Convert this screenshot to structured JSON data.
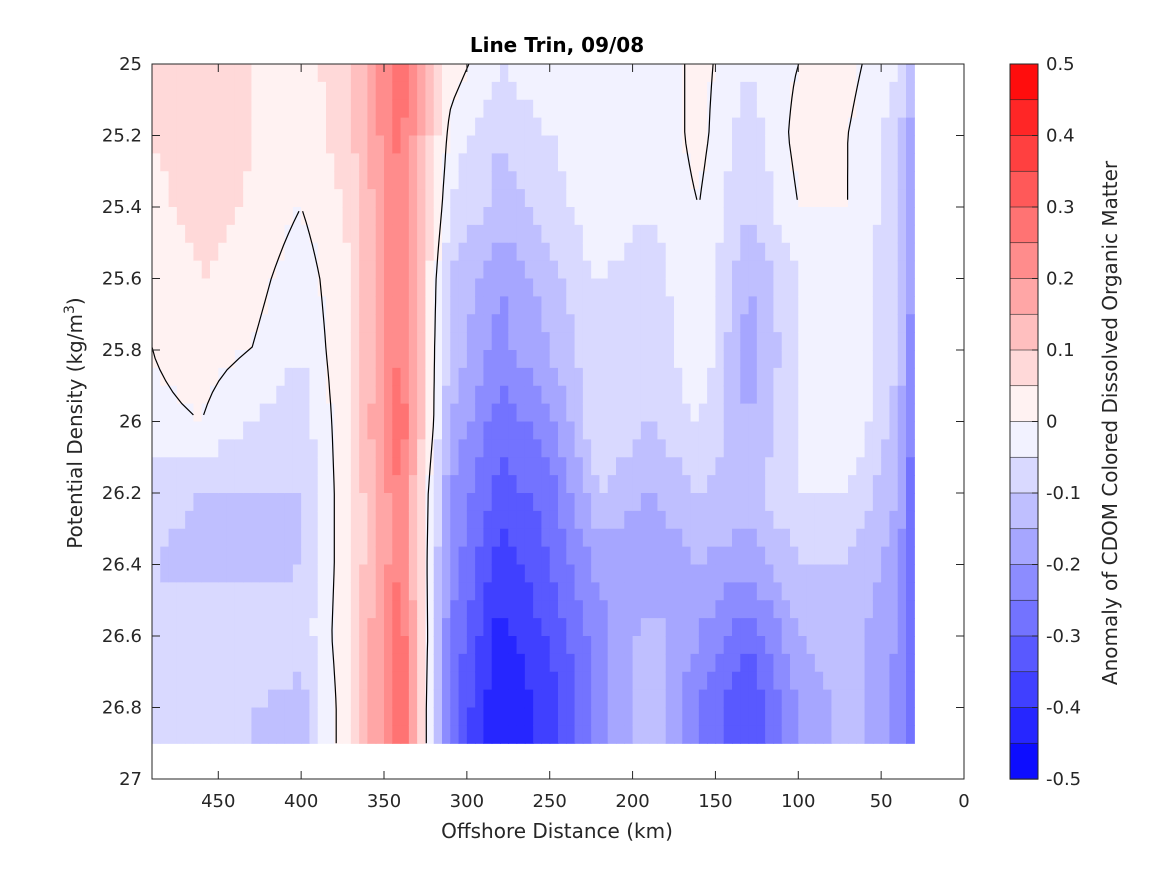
{
  "chart_data": {
    "type": "heatmap",
    "title": "Line Trin, 09/08",
    "xlabel": "Offshore Distance (km)",
    "ylabel_main": "Potential Density (kg/m",
    "ylabel_sup": "3",
    "ylabel_close": ")",
    "colorbar_label": "Anomaly of CDOM Colored Dissolved Organic Matter",
    "x_ticks": [
      450,
      400,
      350,
      300,
      250,
      200,
      150,
      100,
      50,
      0
    ],
    "x_tick_labels": [
      "450",
      "400",
      "350",
      "300",
      "250",
      "200",
      "150",
      "100",
      "50",
      "0"
    ],
    "xlim": [
      490,
      0
    ],
    "x_reversed": true,
    "y_ticks": [
      25,
      25.2,
      25.4,
      25.6,
      25.8,
      26,
      26.2,
      26.4,
      26.6,
      26.8,
      27
    ],
    "y_tick_labels": [
      "25",
      "25.2",
      "25.4",
      "25.6",
      "25.8",
      "26",
      "26.2",
      "26.4",
      "26.6",
      "26.8",
      "27"
    ],
    "ylim": [
      25,
      27
    ],
    "y_reversed": true,
    "colorbar_ticks": [
      0.5,
      0.4,
      0.3,
      0.2,
      0.1,
      0,
      -0.1,
      -0.2,
      -0.3,
      -0.4,
      -0.5
    ],
    "colorbar_tick_labels": [
      "0.5",
      "0.4",
      "0.3",
      "0.2",
      "0.1",
      "0",
      "-0.1",
      "-0.2",
      "-0.3",
      "-0.4",
      "-0.5"
    ],
    "clim": [
      -0.5,
      0.5
    ],
    "contour_levels": 20,
    "colormap": "blue-white-red",
    "color_max": "#ff0000",
    "color_mid": "#ffffff",
    "color_min": "#0000ff",
    "data_x_range": [
      490,
      30
    ],
    "data_y_range": [
      25,
      26.9
    ],
    "zero_contour_color": "#000000",
    "approx_anomaly_columns": [
      {
        "x": 490,
        "values": [
          0.05,
          0.05,
          0.03,
          0.0,
          0.0,
          -0.01,
          -0.08,
          -0.1,
          -0.08,
          -0.1
        ]
      },
      {
        "x": 460,
        "values": [
          0.1,
          0.1,
          0.08,
          0.05,
          0.02,
          0.0,
          -0.1,
          -0.12,
          -0.05,
          -0.08
        ]
      },
      {
        "x": 430,
        "values": [
          0.05,
          0.05,
          0.04,
          0.02,
          0.0,
          -0.05,
          -0.1,
          -0.12,
          -0.05,
          -0.1
        ]
      },
      {
        "x": 400,
        "values": [
          0.02,
          0.0,
          0.0,
          -0.03,
          -0.05,
          -0.08,
          -0.1,
          -0.1,
          -0.08,
          -0.12
        ]
      },
      {
        "x": 370,
        "values": [
          0.1,
          0.1,
          0.06,
          0.05,
          0.05,
          0.05,
          0.05,
          0.05,
          0.05,
          0.05
        ]
      },
      {
        "x": 340,
        "values": [
          0.3,
          0.27,
          0.25,
          0.25,
          0.26,
          0.3,
          0.25,
          0.25,
          0.3,
          0.3
        ]
      },
      {
        "x": 310,
        "values": [
          0.03,
          -0.02,
          -0.05,
          -0.1,
          -0.12,
          -0.15,
          -0.2,
          -0.22,
          -0.25,
          -0.28
        ]
      },
      {
        "x": 280,
        "values": [
          -0.05,
          -0.1,
          -0.12,
          -0.2,
          -0.22,
          -0.28,
          -0.32,
          -0.38,
          -0.42,
          -0.45
        ]
      },
      {
        "x": 250,
        "values": [
          0.0,
          -0.05,
          -0.08,
          -0.12,
          -0.15,
          -0.22,
          -0.28,
          -0.3,
          -0.35,
          -0.38
        ]
      },
      {
        "x": 220,
        "values": [
          -0.02,
          -0.02,
          0.0,
          -0.05,
          -0.05,
          -0.05,
          -0.1,
          -0.18,
          -0.22,
          -0.22
        ]
      },
      {
        "x": 190,
        "values": [
          -0.05,
          -0.05,
          -0.05,
          -0.08,
          -0.1,
          -0.1,
          -0.15,
          -0.2,
          -0.12,
          -0.1
        ]
      },
      {
        "x": 160,
        "values": [
          0.02,
          0.02,
          0.0,
          0.0,
          0.0,
          -0.05,
          -0.1,
          -0.15,
          -0.2,
          -0.25
        ]
      },
      {
        "x": 130,
        "values": [
          -0.05,
          -0.08,
          -0.1,
          -0.15,
          -0.18,
          -0.15,
          -0.12,
          -0.18,
          -0.3,
          -0.35
        ]
      },
      {
        "x": 100,
        "values": [
          0.0,
          0.02,
          0.0,
          -0.05,
          -0.05,
          -0.05,
          -0.05,
          -0.1,
          -0.15,
          -0.2
        ]
      },
      {
        "x": 70,
        "values": [
          0.02,
          0.0,
          0.0,
          0.0,
          0.0,
          0.0,
          -0.05,
          -0.1,
          -0.12,
          -0.12
        ]
      },
      {
        "x": 40,
        "values": [
          -0.05,
          -0.08,
          -0.08,
          -0.1,
          -0.1,
          -0.12,
          -0.15,
          -0.18,
          -0.2,
          -0.22
        ]
      },
      {
        "x": 30,
        "values": [
          -0.15,
          -0.18,
          -0.2,
          -0.22,
          -0.25,
          -0.28,
          -0.3,
          -0.32,
          -0.3,
          -0.3
        ]
      }
    ],
    "approx_anomaly_rows_y": [
      25.0,
      25.2,
      25.4,
      25.6,
      25.8,
      26.0,
      26.2,
      26.4,
      26.6,
      26.8
    ]
  }
}
